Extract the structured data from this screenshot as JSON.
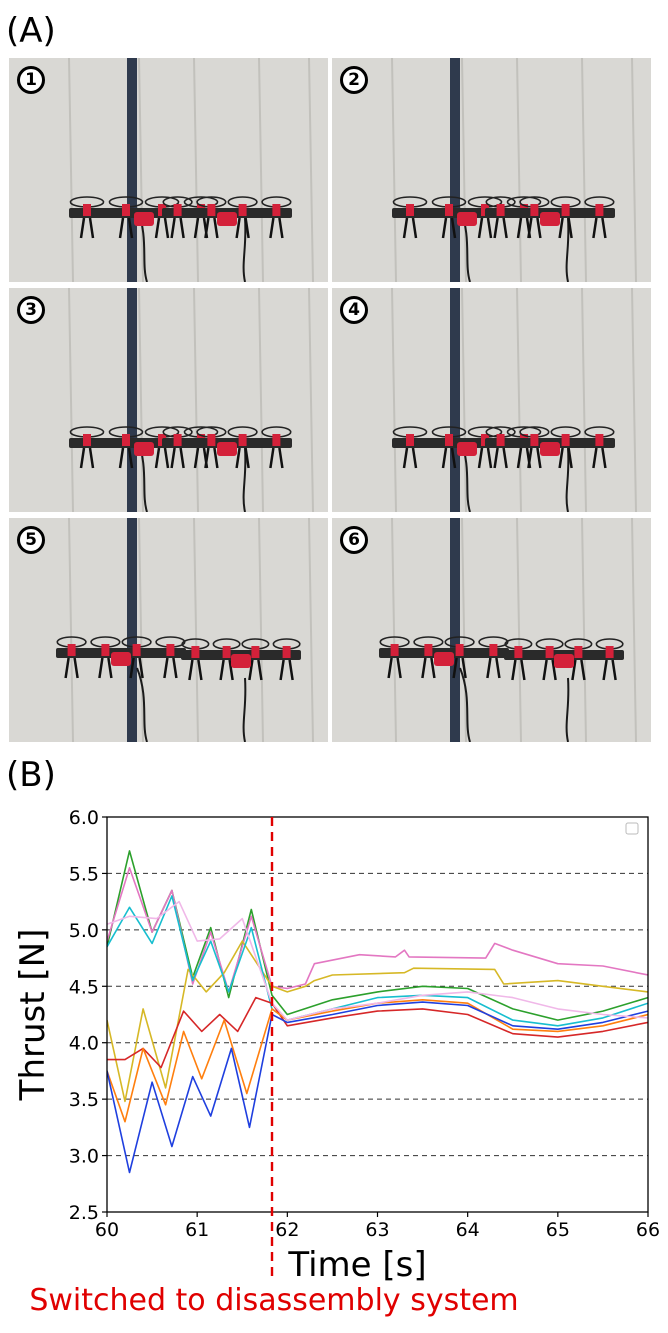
{
  "figure": {
    "panel_a_label": "(A)",
    "panel_b_label": "(B)",
    "frames": [
      {
        "badge": "1",
        "phase": "assembled"
      },
      {
        "badge": "2",
        "phase": "assembled"
      },
      {
        "badge": "3",
        "phase": "assembled"
      },
      {
        "badge": "4",
        "phase": "assembled"
      },
      {
        "badge": "5",
        "phase": "separated"
      },
      {
        "badge": "6",
        "phase": "separated"
      }
    ],
    "switch_caption": "Switched to disassembly system"
  },
  "colors": {
    "wall": "#d9d8d4",
    "pole": "#2f3a4d",
    "cable": "#1a1a1a",
    "frame": "#2a2a2a",
    "accent": "#d4213a",
    "event_line": "#e00000"
  },
  "chart_data": {
    "type": "line",
    "xlabel": "Time [s]",
    "ylabel": "Thrust [N]",
    "xlim": [
      60,
      66
    ],
    "ylim": [
      2.5,
      6.0
    ],
    "xticks": [
      "60",
      "61",
      "62",
      "63",
      "64",
      "65",
      "66"
    ],
    "yticks": [
      "2.5",
      "3.0",
      "3.5",
      "4.0",
      "4.5",
      "5.0",
      "5.5",
      "6.0"
    ],
    "grid": "horizontal dashed",
    "legend": "top-right (empty)",
    "event_x": 61.83,
    "series": [
      {
        "color": "#2ca02c",
        "points": [
          [
            60,
            4.85
          ],
          [
            60.25,
            5.7
          ],
          [
            60.5,
            4.98
          ],
          [
            60.72,
            5.35
          ],
          [
            60.95,
            4.58
          ],
          [
            61.15,
            5.02
          ],
          [
            61.35,
            4.4
          ],
          [
            61.6,
            5.18
          ],
          [
            61.83,
            4.42
          ],
          [
            62,
            4.25
          ],
          [
            62.5,
            4.38
          ],
          [
            63,
            4.45
          ],
          [
            63.5,
            4.5
          ],
          [
            64,
            4.48
          ],
          [
            64.5,
            4.3
          ],
          [
            65,
            4.2
          ],
          [
            65.5,
            4.28
          ],
          [
            66,
            4.4
          ]
        ]
      },
      {
        "color": "#e377c2",
        "points": [
          [
            60,
            4.9
          ],
          [
            60.25,
            5.55
          ],
          [
            60.5,
            4.98
          ],
          [
            60.72,
            5.35
          ],
          [
            60.95,
            4.52
          ],
          [
            61.15,
            4.98
          ],
          [
            61.35,
            4.45
          ],
          [
            61.6,
            5.12
          ],
          [
            61.83,
            4.5
          ],
          [
            62,
            4.48
          ],
          [
            62.2,
            4.52
          ],
          [
            62.3,
            4.7
          ],
          [
            62.8,
            4.78
          ],
          [
            63.2,
            4.76
          ],
          [
            63.3,
            4.82
          ],
          [
            63.35,
            4.76
          ],
          [
            64.2,
            4.75
          ],
          [
            64.3,
            4.88
          ],
          [
            64.5,
            4.82
          ],
          [
            65,
            4.7
          ],
          [
            65.5,
            4.68
          ],
          [
            66,
            4.6
          ]
        ]
      },
      {
        "color": "#d6b826",
        "points": [
          [
            60,
            4.2
          ],
          [
            60.2,
            3.48
          ],
          [
            60.4,
            4.3
          ],
          [
            60.65,
            3.6
          ],
          [
            60.9,
            4.65
          ],
          [
            61.1,
            4.45
          ],
          [
            61.3,
            4.62
          ],
          [
            61.5,
            4.9
          ],
          [
            61.83,
            4.5
          ],
          [
            62,
            4.45
          ],
          [
            62.2,
            4.5
          ],
          [
            62.3,
            4.55
          ],
          [
            62.5,
            4.6
          ],
          [
            63.3,
            4.62
          ],
          [
            63.4,
            4.66
          ],
          [
            64.3,
            4.65
          ],
          [
            64.4,
            4.52
          ],
          [
            65,
            4.55
          ],
          [
            65.5,
            4.5
          ],
          [
            66,
            4.45
          ]
        ]
      },
      {
        "color": "#17becf",
        "points": [
          [
            60,
            4.85
          ],
          [
            60.25,
            5.2
          ],
          [
            60.5,
            4.88
          ],
          [
            60.72,
            5.3
          ],
          [
            60.95,
            4.55
          ],
          [
            61.15,
            4.9
          ],
          [
            61.35,
            4.45
          ],
          [
            61.6,
            5.02
          ],
          [
            61.83,
            4.3
          ],
          [
            62,
            4.2
          ],
          [
            62.5,
            4.3
          ],
          [
            63,
            4.4
          ],
          [
            63.5,
            4.42
          ],
          [
            64,
            4.4
          ],
          [
            64.5,
            4.2
          ],
          [
            65,
            4.15
          ],
          [
            65.5,
            4.22
          ],
          [
            66,
            4.35
          ]
        ]
      },
      {
        "color": "#d62728",
        "points": [
          [
            60,
            3.85
          ],
          [
            60.2,
            3.85
          ],
          [
            60.4,
            3.95
          ],
          [
            60.6,
            3.78
          ],
          [
            60.85,
            4.28
          ],
          [
            61.05,
            4.1
          ],
          [
            61.25,
            4.25
          ],
          [
            61.45,
            4.1
          ],
          [
            61.65,
            4.4
          ],
          [
            61.83,
            4.35
          ],
          [
            62,
            4.15
          ],
          [
            62.5,
            4.22
          ],
          [
            63,
            4.28
          ],
          [
            63.5,
            4.3
          ],
          [
            64,
            4.25
          ],
          [
            64.5,
            4.08
          ],
          [
            65,
            4.05
          ],
          [
            65.5,
            4.1
          ],
          [
            66,
            4.18
          ]
        ]
      },
      {
        "color": "#ff7f0e",
        "points": [
          [
            60,
            3.75
          ],
          [
            60.2,
            3.3
          ],
          [
            60.4,
            3.95
          ],
          [
            60.65,
            3.45
          ],
          [
            60.85,
            4.1
          ],
          [
            61.05,
            3.68
          ],
          [
            61.3,
            4.2
          ],
          [
            61.55,
            3.55
          ],
          [
            61.83,
            4.3
          ],
          [
            62,
            4.2
          ],
          [
            62.5,
            4.28
          ],
          [
            63,
            4.35
          ],
          [
            63.5,
            4.38
          ],
          [
            64,
            4.35
          ],
          [
            64.5,
            4.12
          ],
          [
            65,
            4.1
          ],
          [
            65.5,
            4.15
          ],
          [
            66,
            4.25
          ]
        ]
      },
      {
        "color": "#1f3fdf",
        "points": [
          [
            60,
            3.75
          ],
          [
            60.25,
            2.85
          ],
          [
            60.5,
            3.65
          ],
          [
            60.72,
            3.08
          ],
          [
            60.95,
            3.7
          ],
          [
            61.15,
            3.35
          ],
          [
            61.38,
            3.95
          ],
          [
            61.58,
            3.25
          ],
          [
            61.83,
            4.25
          ],
          [
            62,
            4.18
          ],
          [
            62.5,
            4.25
          ],
          [
            63,
            4.33
          ],
          [
            63.5,
            4.36
          ],
          [
            64,
            4.33
          ],
          [
            64.5,
            4.15
          ],
          [
            65,
            4.12
          ],
          [
            65.5,
            4.18
          ],
          [
            66,
            4.28
          ]
        ]
      },
      {
        "color": "#f0b8e8",
        "points": [
          [
            60,
            5.05
          ],
          [
            60.25,
            5.12
          ],
          [
            60.55,
            5.1
          ],
          [
            60.8,
            5.25
          ],
          [
            61.0,
            4.9
          ],
          [
            61.25,
            4.92
          ],
          [
            61.5,
            5.1
          ],
          [
            61.83,
            4.35
          ],
          [
            62,
            4.2
          ],
          [
            62.5,
            4.3
          ],
          [
            63,
            4.35
          ],
          [
            63.5,
            4.42
          ],
          [
            64,
            4.45
          ],
          [
            64.5,
            4.4
          ],
          [
            65,
            4.3
          ],
          [
            65.5,
            4.25
          ],
          [
            66,
            4.22
          ]
        ]
      }
    ]
  }
}
